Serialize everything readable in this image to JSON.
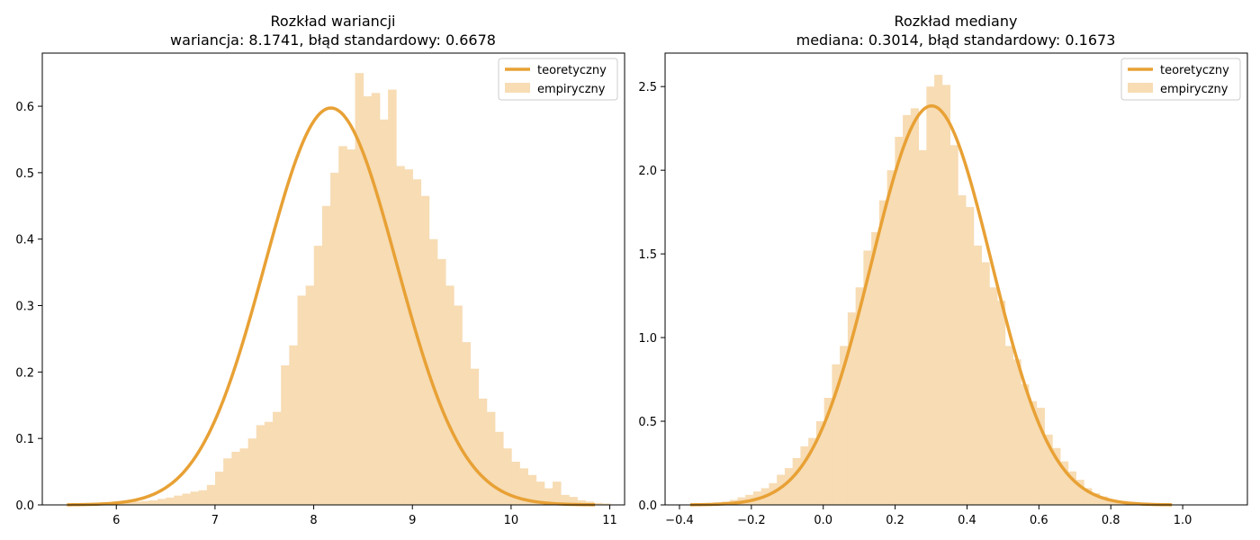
{
  "colors": {
    "curve": "#e8a135",
    "bars": "#f7dcb4",
    "axis": "#000000",
    "legend_border": "#cccccc",
    "background": "#ffffff"
  },
  "chart_data": [
    {
      "type": "bar",
      "title": "Rozkład wariancji",
      "subtitle": "wariancja: 8.1741, błąd standardowy: 0.6678",
      "xlabel": "",
      "ylabel": "",
      "xlim": [
        5.25,
        11.15
      ],
      "ylim": [
        0,
        0.68
      ],
      "xticks": [
        6,
        7,
        8,
        9,
        10,
        11
      ],
      "yticks": [
        0.0,
        0.1,
        0.2,
        0.3,
        0.4,
        0.5,
        0.6
      ],
      "ytick_labels": [
        "0.0",
        "0.1",
        "0.2",
        "0.3",
        "0.4",
        "0.5",
        "0.6"
      ],
      "grid": false,
      "legend": {
        "placement": "top-right",
        "entries": [
          "teoretyczny",
          "empiryczny"
        ]
      },
      "curve": {
        "name": "teoretyczny",
        "dist": "normal",
        "mean": 8.1741,
        "sd": 0.6678,
        "range": [
          5.5,
          10.85
        ]
      },
      "histogram": {
        "name": "empiryczny",
        "bin_edges_start": 5.5,
        "bin_width": 0.0834,
        "heights": [
          0.002,
          0.002,
          0.002,
          0.002,
          0.002,
          0.003,
          0.003,
          0.004,
          0.005,
          0.006,
          0.007,
          0.009,
          0.011,
          0.014,
          0.017,
          0.02,
          0.022,
          0.03,
          0.05,
          0.07,
          0.08,
          0.085,
          0.1,
          0.12,
          0.125,
          0.14,
          0.21,
          0.24,
          0.315,
          0.33,
          0.39,
          0.45,
          0.5,
          0.54,
          0.535,
          0.65,
          0.615,
          0.62,
          0.58,
          0.625,
          0.51,
          0.505,
          0.49,
          0.465,
          0.4,
          0.37,
          0.33,
          0.3,
          0.245,
          0.205,
          0.16,
          0.14,
          0.11,
          0.085,
          0.065,
          0.055,
          0.045,
          0.035,
          0.025,
          0.035,
          0.015,
          0.012,
          0.007,
          0.005,
          0.003,
          0.002
        ]
      }
    },
    {
      "type": "bar",
      "title": "Rozkład mediany",
      "subtitle": "mediana: 0.3014, błąd standardowy: 0.1673",
      "xlabel": "",
      "ylabel": "",
      "xlim": [
        -0.44,
        1.18
      ],
      "ylim": [
        0,
        2.7
      ],
      "xticks": [
        -0.4,
        -0.2,
        0.0,
        0.2,
        0.4,
        0.6,
        0.8,
        1.0
      ],
      "xtick_labels": [
        "−0.4",
        "−0.2",
        "0.0",
        "0.2",
        "0.4",
        "0.6",
        "0.8",
        "1.0"
      ],
      "yticks": [
        0.0,
        0.5,
        1.0,
        1.5,
        2.0,
        2.5
      ],
      "ytick_labels": [
        "0.0",
        "0.5",
        "1.0",
        "1.5",
        "2.0",
        "2.5"
      ],
      "grid": false,
      "legend": {
        "placement": "top-right",
        "entries": [
          "teoretyczny",
          "empiryczny"
        ]
      },
      "curve": {
        "name": "teoretyczny",
        "dist": "normal",
        "mean": 0.3014,
        "sd": 0.1673,
        "range": [
          -0.37,
          0.97
        ]
      },
      "histogram": {
        "name": "empiryczny",
        "bin_edges_start": -0.37,
        "bin_width": 0.0219,
        "heights": [
          0.005,
          0.007,
          0.01,
          0.015,
          0.02,
          0.03,
          0.045,
          0.06,
          0.08,
          0.1,
          0.13,
          0.18,
          0.22,
          0.28,
          0.35,
          0.4,
          0.5,
          0.64,
          0.84,
          0.95,
          1.15,
          1.3,
          1.52,
          1.63,
          1.82,
          2.0,
          2.2,
          2.33,
          2.37,
          2.12,
          2.5,
          2.57,
          2.51,
          2.15,
          1.85,
          1.78,
          1.55,
          1.45,
          1.3,
          1.22,
          0.95,
          0.87,
          0.72,
          0.62,
          0.58,
          0.42,
          0.34,
          0.26,
          0.2,
          0.15,
          0.1,
          0.07,
          0.05,
          0.03,
          0.02,
          0.01,
          0.006,
          0.004,
          0.003,
          0.002,
          0.002,
          0.001,
          0.001
        ]
      }
    }
  ]
}
